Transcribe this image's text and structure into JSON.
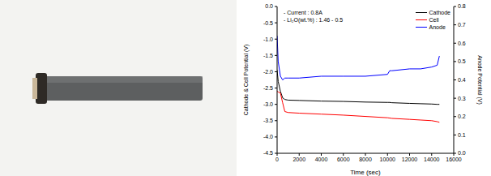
{
  "chart_data": {
    "type": "line",
    "annotations": [
      "- Current : 0.8A",
      "- Li₂O(wt.%) : 1.46 - 0.5"
    ],
    "x_label": "Time (sec)",
    "y_label": "Cathode & Cell Potential (V)",
    "y2_label": "Anode Potential (V)",
    "x": [
      0,
      100,
      300,
      500,
      700,
      1000,
      2000,
      4000,
      6000,
      8000,
      10000,
      10200,
      10400,
      12000,
      13000,
      14000,
      14500,
      14700
    ],
    "series": [
      {
        "name": "Cathode",
        "color": "#000000",
        "values": [
          -1.95,
          -2.3,
          -2.6,
          -2.8,
          -2.85,
          -2.87,
          -2.88,
          -2.9,
          -2.91,
          -2.93,
          -2.94,
          -2.94,
          -2.95,
          -2.97,
          -2.98,
          -2.99,
          -3.0,
          -3.0
        ]
      },
      {
        "name": "Cell",
        "color": "#ff0000",
        "values": [
          -2.6,
          -2.62,
          -2.65,
          -2.95,
          -3.22,
          -3.25,
          -3.27,
          -3.3,
          -3.33,
          -3.37,
          -3.41,
          -3.42,
          -3.43,
          -3.46,
          -3.48,
          -3.5,
          -3.53,
          -3.55
        ]
      },
      {
        "name": "Anode",
        "color": "#0000ff",
        "axis": "y2",
        "values": [
          0.64,
          0.5,
          0.42,
          0.4,
          0.41,
          0.41,
          0.41,
          0.42,
          0.42,
          0.42,
          0.43,
          0.45,
          0.45,
          0.46,
          0.46,
          0.47,
          0.48,
          0.53
        ]
      }
    ],
    "xlim": [
      0,
      16000
    ],
    "xticks": [
      0,
      2000,
      4000,
      6000,
      8000,
      10000,
      12000,
      14000,
      16000
    ],
    "ylim": [
      -4.5,
      0
    ],
    "yticks": [
      {
        "value": -4.5,
        "label": "-4.5"
      },
      {
        "value": -4,
        "label": "-4.0"
      },
      -3.5,
      {
        "value": -3,
        "label": "-3.0"
      },
      -2.5,
      {
        "value": -2,
        "label": "-2.0"
      },
      -1.5,
      {
        "value": -1,
        "label": "-1.0"
      },
      -0.5,
      {
        "value": 0,
        "label": "0.0"
      }
    ],
    "y2lim": [
      0,
      0.8
    ],
    "y2ticks": [
      {
        "value": 0,
        "label": "0.0"
      },
      0.1,
      0.2,
      0.3,
      0.4,
      0.5,
      0.6,
      0.7,
      0.8
    ],
    "grid": false,
    "legend": "upper right"
  }
}
